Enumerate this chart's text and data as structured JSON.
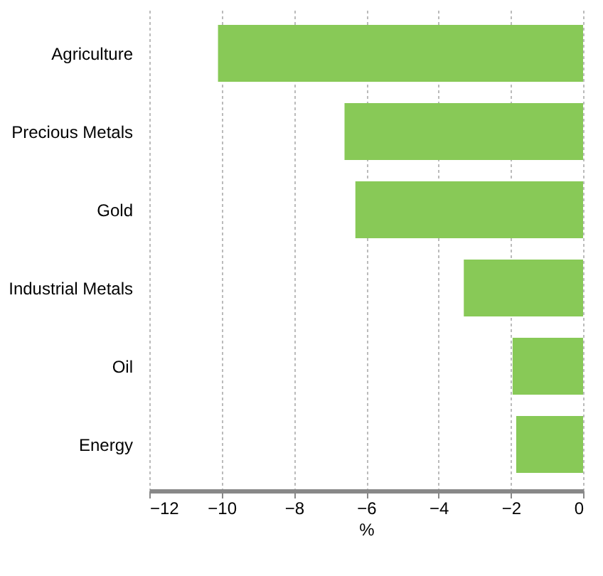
{
  "chart_data": {
    "type": "bar",
    "orientation": "horizontal",
    "xlabel": "%",
    "categories": [
      "Agriculture",
      "Precious Metals",
      "Gold",
      "Industrial Metals",
      "Oil",
      "Energy"
    ],
    "values": [
      -10.1,
      -6.6,
      -6.3,
      -3.3,
      -1.95,
      -1.85
    ],
    "color": "#88c957",
    "xlim": [
      -12,
      0
    ],
    "xticks": [
      -12,
      -10,
      -8,
      -6,
      -4,
      -2,
      0
    ],
    "grid": "x"
  }
}
